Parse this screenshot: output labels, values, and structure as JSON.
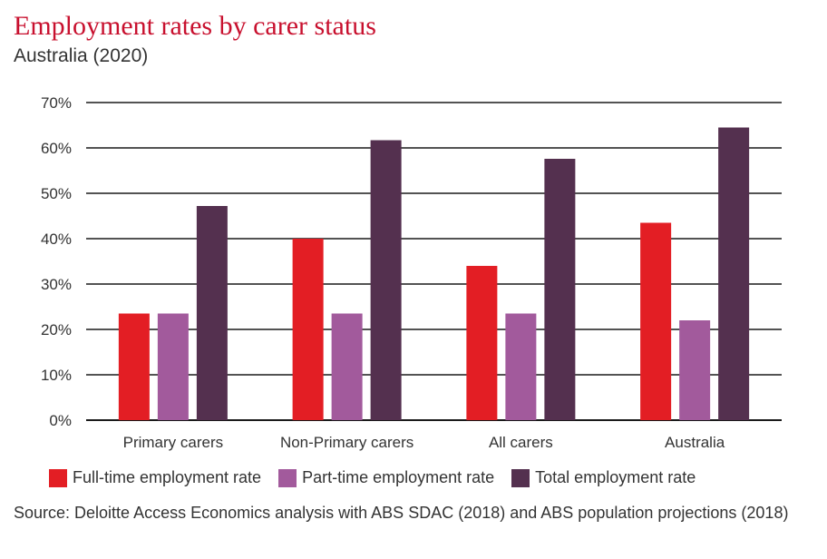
{
  "title": "Employment rates by carer status",
  "subtitle": "Australia (2020)",
  "source": "Source: Deloitte Access Economics analysis with ABS SDAC (2018) and ABS population projections (2018)",
  "chart_data": {
    "type": "bar",
    "categories": [
      "Primary carers",
      "Non-Primary carers",
      "All carers",
      "Australia"
    ],
    "series": [
      {
        "name": "Full-time employment rate",
        "color": "#e31e24",
        "values": [
          23.5,
          40,
          34,
          43.5
        ]
      },
      {
        "name": "Part-time employment rate",
        "color": "#a25a9c",
        "values": [
          23.5,
          23.5,
          23.5,
          22
        ]
      },
      {
        "name": "Total employment rate",
        "color": "#54304f",
        "values": [
          47.2,
          61.7,
          57.6,
          64.5
        ]
      }
    ],
    "ylim": [
      0,
      70
    ],
    "yticks": [
      0,
      10,
      20,
      30,
      40,
      50,
      60,
      70
    ],
    "ytick_labels": [
      "0%",
      "10%",
      "20%",
      "30%",
      "40%",
      "50%",
      "60%",
      "70%"
    ],
    "grid": true,
    "legend_position": "bottom",
    "xlabel": "",
    "ylabel": ""
  }
}
